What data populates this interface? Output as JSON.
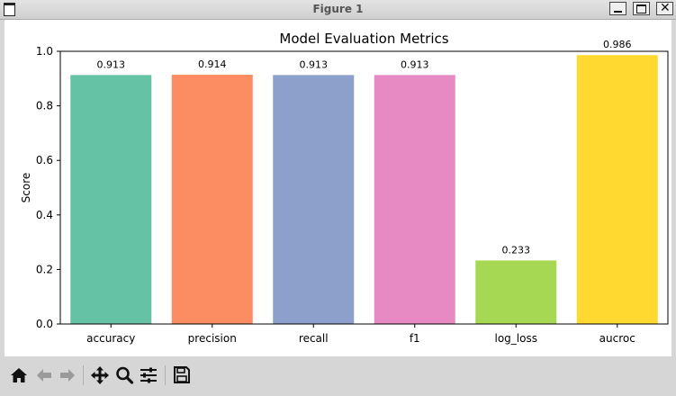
{
  "window": {
    "title": "Figure 1"
  },
  "chart_data": {
    "type": "bar",
    "title": "Model Evaluation Metrics",
    "xlabel": "",
    "ylabel": "Score",
    "ylim": [
      0,
      1.0
    ],
    "yticks": [
      "0.0",
      "0.2",
      "0.4",
      "0.6",
      "0.8",
      "1.0"
    ],
    "categories": [
      "accuracy",
      "precision",
      "recall",
      "f1",
      "log_loss",
      "aucroc"
    ],
    "values": [
      0.913,
      0.914,
      0.913,
      0.913,
      0.233,
      0.986
    ],
    "data_labels": [
      "0.913",
      "0.914",
      "0.913",
      "0.913",
      "0.233",
      "0.986"
    ],
    "colors": [
      "#66c2a5",
      "#fc8d62",
      "#8da0cb",
      "#e78ac3",
      "#a6d854",
      "#ffd92f"
    ],
    "grid": false,
    "legend": "none"
  },
  "toolbar": {
    "icons": [
      "home-icon",
      "back-arrow-icon",
      "forward-arrow-icon",
      "pan-icon",
      "zoom-icon",
      "configure-subplots-icon",
      "save-icon"
    ]
  }
}
